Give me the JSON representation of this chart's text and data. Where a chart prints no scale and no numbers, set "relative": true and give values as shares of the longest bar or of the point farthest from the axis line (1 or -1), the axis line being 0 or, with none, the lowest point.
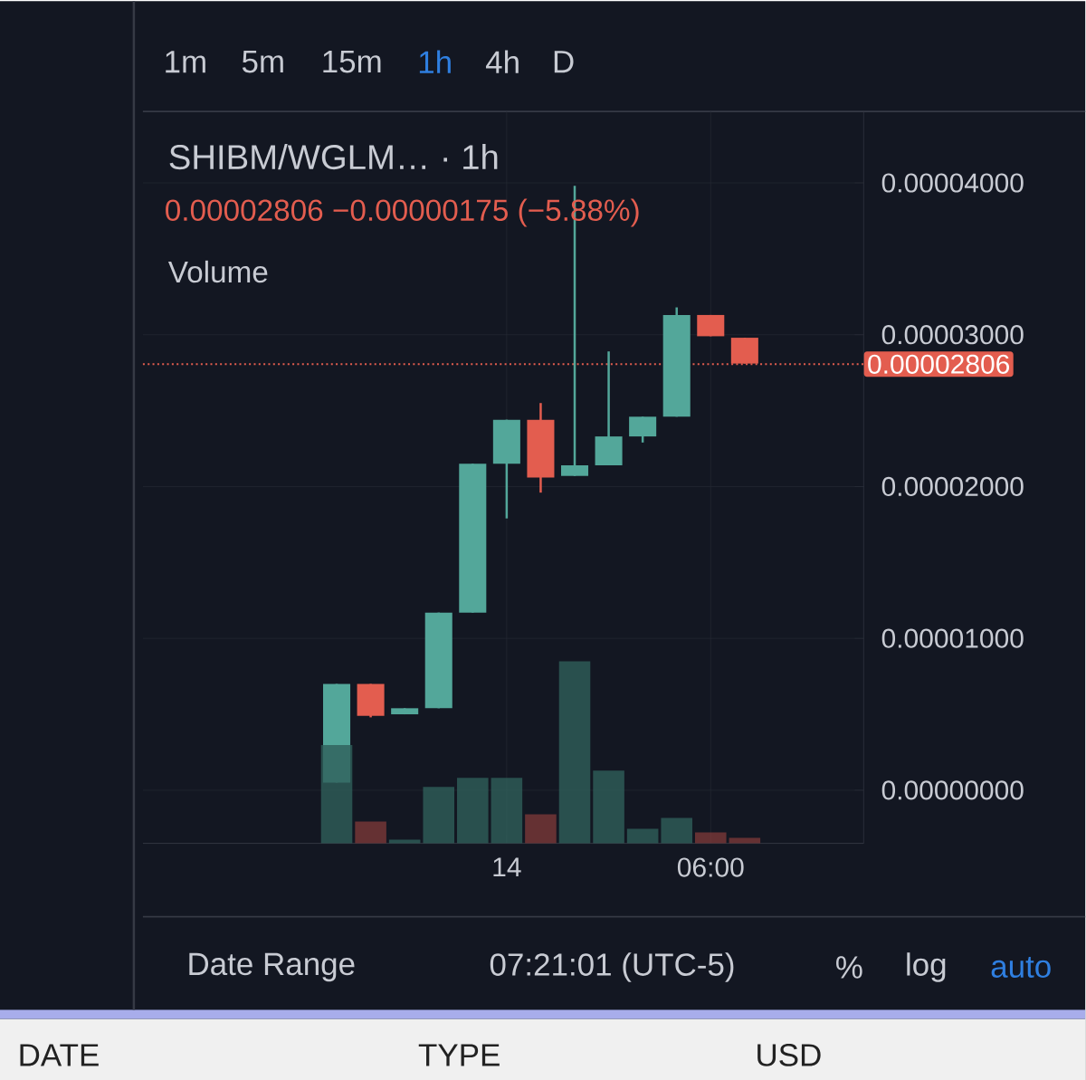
{
  "chart_data": [
    {
      "type": "candlestick",
      "title": "SHIBM/WGLM… · 1h",
      "subtitle": "0.00002806 −0.00000175 (−5.88%)",
      "categories": [
        null,
        null,
        null,
        null,
        null,
        "14",
        null,
        null,
        null,
        null,
        null,
        "06:00",
        null
      ],
      "ohlc": [
        [
          5e-07,
          7e-06,
          5e-07,
          7e-06
        ],
        [
          7e-06,
          7e-06,
          4.8e-06,
          4.9e-06
        ],
        [
          5e-06,
          5.4e-06,
          5e-06,
          5.4e-06
        ],
        [
          5.4e-06,
          1.17e-05,
          5.4e-06,
          1.17e-05
        ],
        [
          1.17e-05,
          2.15e-05,
          1.17e-05,
          2.15e-05
        ],
        [
          2.15e-05,
          2.44e-05,
          1.79e-05,
          2.44e-05
        ],
        [
          2.44e-05,
          2.55e-05,
          1.96e-05,
          2.06e-05
        ],
        [
          2.07e-05,
          3.98e-05,
          2.07e-05,
          2.14e-05
        ],
        [
          2.14e-05,
          2.89e-05,
          2.14e-05,
          2.33e-05
        ],
        [
          2.33e-05,
          2.46e-05,
          2.29e-05,
          2.46e-05
        ],
        [
          2.46e-05,
          3.18e-05,
          2.46e-05,
          3.13e-05
        ],
        [
          3.13e-05,
          3.13e-05,
          2.99e-05,
          2.99e-05
        ],
        [
          2.98e-05,
          2.98e-05,
          2.81e-05,
          2.81e-05
        ]
      ],
      "colors": [
        "#53a79a",
        "#e35d4f",
        "#53a79a",
        "#53a79a",
        "#53a79a",
        "#53a79a",
        "#e35d4f",
        "#53a79a",
        "#53a79a",
        "#53a79a",
        "#53a79a",
        "#e35d4f",
        "#e35d4f"
      ],
      "ylim": [
        -3.5e-06,
        4.47e-05
      ],
      "yticks": [
        {
          "value": 0,
          "label": "0.00000000"
        },
        {
          "value": 1e-05,
          "label": "0.00001000"
        },
        {
          "value": 2e-05,
          "label": "0.00002000"
        },
        {
          "value": 3e-05,
          "label": "0.00003000"
        },
        {
          "value": 4e-05,
          "label": "0.00004000"
        }
      ],
      "grid": true,
      "ref_lines": [
        {
          "axis": "y",
          "value": 2.806e-05,
          "label": "0.00002806",
          "color": "#e35d4f",
          "line_style": "dotted"
        }
      ],
      "annotations": [
        "1m",
        "5m",
        "15m",
        "1h",
        "4h",
        "D",
        "Date Range",
        "07:21:01 (UTC-5)",
        "%",
        "log",
        "auto",
        "DATE",
        "TYPE",
        "USD"
      ]
    },
    {
      "type": "bar",
      "relative": true,
      "categories": [
        null,
        null,
        null,
        null,
        null,
        null,
        null,
        null,
        null,
        null,
        null,
        null,
        null
      ],
      "series": [
        {
          "name": "Volume",
          "values": [
            0.54,
            0.12,
            0.02,
            0.31,
            0.36,
            0.36,
            0.16,
            1,
            0.4,
            0.08,
            0.14,
            0.06,
            0.03
          ],
          "colors": [
            "#2f5f5a",
            "#7a3838",
            "#2f5f5a",
            "#2f5f5a",
            "#2f5f5a",
            "#2f5f5a",
            "#7a3838",
            "#2f5f5a",
            "#2f5f5a",
            "#2f5f5a",
            "#2f5f5a",
            "#7a3838",
            "#7a3838"
          ]
        }
      ]
    }
  ]
}
